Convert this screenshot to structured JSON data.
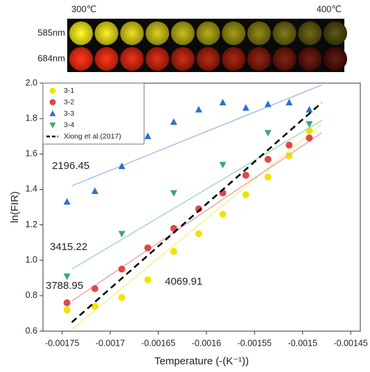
{
  "photo": {
    "start_label": "300℃",
    "end_label": "400℃",
    "rows": [
      "585nm",
      "684nm"
    ]
  },
  "chart_data": {
    "type": "scatter",
    "x_label": "Temperature (-(K⁻¹))",
    "y_label": "ln(FIR)",
    "xlim": [
      -0.00177,
      -0.00144
    ],
    "ylim": [
      0.6,
      2.0
    ],
    "xticks": [
      -0.00175,
      -0.0017,
      -0.00165,
      -0.0016,
      -0.00155,
      -0.0015,
      -0.00145
    ],
    "yticks": [
      0.6,
      0.8,
      {
        "value": 1.0,
        "label": "1.0"
      },
      1.2,
      1.4,
      1.6,
      1.8,
      {
        "value": 2.0,
        "label": "2.0"
      }
    ],
    "x": [
      -0.001745,
      -0.001716,
      -0.001688,
      -0.001661,
      -0.001634,
      -0.001608,
      -0.001583,
      -0.001559,
      -0.001536,
      -0.001514,
      -0.001493
    ],
    "series": [
      {
        "name": "3-1",
        "color": "#f2e200",
        "marker": "circle",
        "values": [
          0.72,
          0.74,
          0.79,
          0.89,
          1.05,
          1.15,
          1.26,
          1.37,
          1.47,
          1.59,
          1.73
        ],
        "fit": {
          "color": "#f4ee80",
          "x": [
            -0.00174,
            -0.00148
          ],
          "values": [
            0.61,
            1.77
          ]
        },
        "annotation": "4069.91"
      },
      {
        "name": "3-2",
        "color": "#e04848",
        "marker": "circle",
        "values": [
          0.76,
          0.84,
          0.95,
          1.07,
          1.18,
          1.29,
          1.38,
          1.48,
          1.57,
          1.65,
          1.69
        ],
        "fit": {
          "color": "#f09a9a",
          "x": [
            -0.00174,
            -0.00148
          ],
          "values": [
            0.77,
            1.72
          ]
        },
        "annotation": "3788.95"
      },
      {
        "name": "3-3",
        "color": "#2f6fd0",
        "marker": "triangle-up",
        "values": [
          1.33,
          1.39,
          1.53,
          1.7,
          1.78,
          1.85,
          1.89,
          1.86,
          1.88,
          1.89,
          1.85
        ],
        "fit": {
          "color": "#93b8e8",
          "x": [
            -0.00174,
            -0.00148
          ],
          "values": [
            1.42,
            1.99
          ]
        },
        "annotation": "2196.45"
      },
      {
        "name": "3-4",
        "color": "#3aa878",
        "marker": "triangle-down",
        "values": [
          0.91,
          null,
          1.15,
          null,
          1.38,
          null,
          1.54,
          null,
          1.72,
          null,
          1.77
        ],
        "fit": {
          "color": "#95d4b4",
          "x": [
            -0.00174,
            -0.00148
          ],
          "values": [
            0.95,
            1.79
          ]
        },
        "annotation": "3415.22"
      },
      {
        "name": "Xiong et al.(2017)",
        "color": "#000000",
        "marker": "dashed-line",
        "x": [
          -0.00174,
          -0.00148
        ],
        "values": [
          0.65,
          1.89
        ]
      }
    ]
  }
}
